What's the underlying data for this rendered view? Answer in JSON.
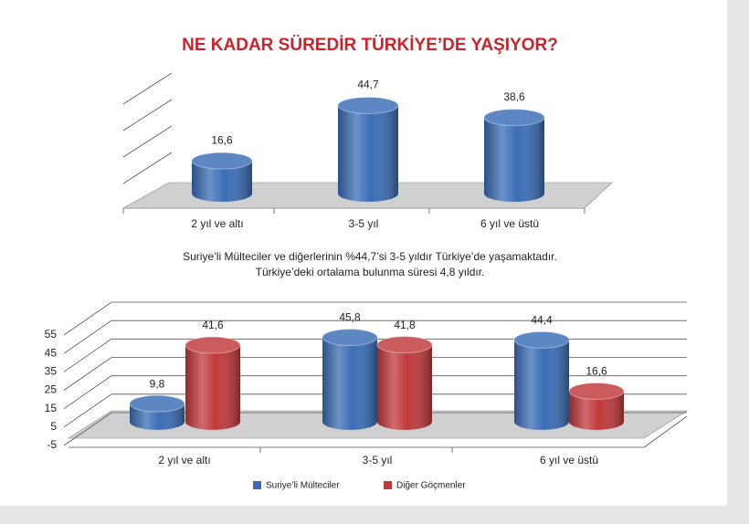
{
  "chart_data": [
    {
      "type": "bar",
      "title": "NE KADAR SÜREDİR TÜRKİYE’DE YAŞIYOR?",
      "categories": [
        "2 yıl ve altı",
        "3-5 yıl",
        "6 yıl ve üstü"
      ],
      "values": [
        16.6,
        44.7,
        38.6
      ],
      "value_labels": [
        "16,6",
        "44,7",
        "38,6"
      ],
      "color": "#3a6db5",
      "ylim": [
        0,
        50
      ],
      "annotations": [
        "Suriye’li Mülteciler ve diğerlerinin %44,7’si 3-5 yıldır Türkiye’de yaşamaktadır.",
        "Türkiye’deki ortalama bulunma süresi 4,8 yıldır."
      ]
    },
    {
      "type": "bar",
      "categories": [
        "2 yıl ve altı",
        "3-5 yıl",
        "6 yıl ve üstü"
      ],
      "series": [
        {
          "name": "Suriye’li Mülteciler",
          "color": "#3a6db5",
          "values": [
            9.8,
            45.8,
            44.4
          ],
          "value_labels": [
            "9,8",
            "45,8",
            "44,4"
          ]
        },
        {
          "name": "Diğer Göçmenler",
          "color": "#c0393b",
          "values": [
            41.6,
            41.8,
            16.6
          ],
          "value_labels": [
            "41,6",
            "41,8",
            "16,6"
          ]
        }
      ],
      "ylim": [
        -5,
        55
      ],
      "yticks": [
        -5,
        5,
        15,
        25,
        35,
        45,
        55
      ],
      "grid": true,
      "legend": "bottom"
    }
  ]
}
